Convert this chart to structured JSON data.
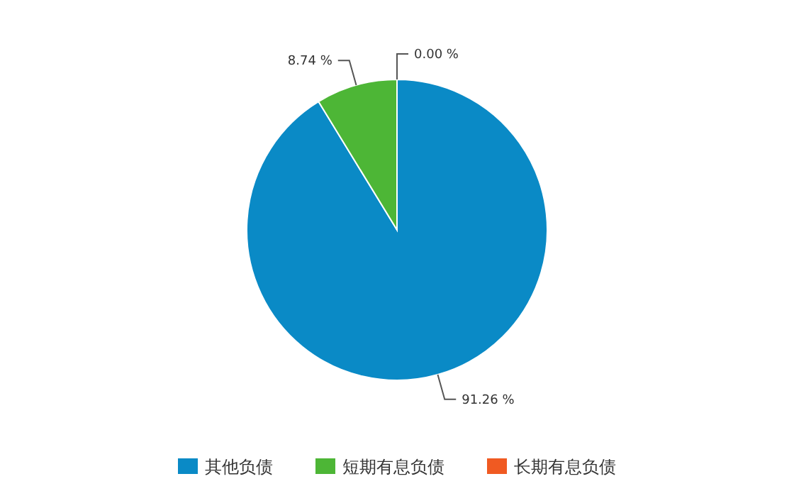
{
  "chart_data": {
    "type": "pie",
    "categories": [
      "其他负债",
      "短期有息负债",
      "长期有息负债"
    ],
    "values": [
      91.26,
      8.74,
      0.0
    ],
    "colors": [
      "#0a8ac6",
      "#4db636",
      "#f05a22"
    ],
    "value_labels": [
      "91.26 %",
      "8.74 %",
      "0.00 %"
    ],
    "legend": "bottom"
  }
}
